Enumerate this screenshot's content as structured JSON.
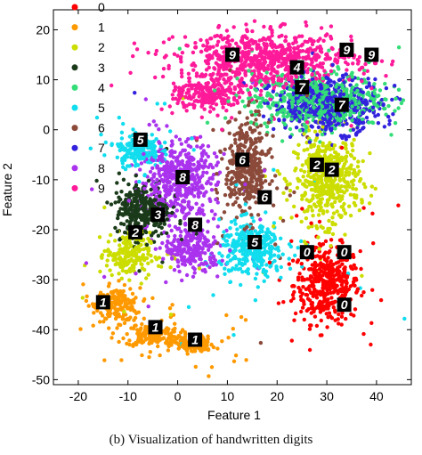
{
  "caption": "(b) Visualization of handwritten digits",
  "colors": [
    "#ff0000",
    "#ff9900",
    "#ccdd00",
    "#1a3a1a",
    "#33dd77",
    "#11ddee",
    "#8b4a3a",
    "#3322dd",
    "#aa33ee",
    "#ff1a9a"
  ],
  "chart_data": {
    "type": "scatter",
    "xlabel": "Feature 1",
    "ylabel": "Feature 2",
    "xlim": [
      -25,
      47
    ],
    "ylim": [
      -51,
      24
    ],
    "xticks": [
      "-20",
      "-10",
      "0",
      "10",
      "20",
      "30",
      "40"
    ],
    "yticks": [
      "20",
      "10",
      "0",
      "-10",
      "-20",
      "-30",
      "-40",
      "-50"
    ],
    "xtick_values": [
      -20,
      -10,
      0,
      10,
      20,
      30,
      40
    ],
    "ytick_values": [
      20,
      10,
      0,
      -10,
      -20,
      -30,
      -40,
      -50
    ],
    "grid": false,
    "legend_position": "top-left",
    "series": [
      {
        "name": "0",
        "color": "#ff0000",
        "clusters": [
          {
            "cx": 30,
            "cy": -31,
            "rx": 6,
            "ry": 7
          }
        ]
      },
      {
        "name": "1",
        "color": "#ff9900",
        "clusters": [
          {
            "cx": -12,
            "cy": -35,
            "rx": 4,
            "ry": 3
          },
          {
            "cx": -5,
            "cy": -41,
            "rx": 5,
            "ry": 2.2
          },
          {
            "cx": 3,
            "cy": -43,
            "rx": 4,
            "ry": 1.5
          }
        ]
      },
      {
        "name": "2",
        "color": "#ccdd00",
        "clusters": [
          {
            "cx": 30,
            "cy": -10,
            "rx": 6,
            "ry": 8
          },
          {
            "cx": -10,
            "cy": -25,
            "rx": 4,
            "ry": 4
          }
        ]
      },
      {
        "name": "3",
        "color": "#1a3a1a",
        "clusters": [
          {
            "cx": -7,
            "cy": -16,
            "rx": 5,
            "ry": 5
          }
        ]
      },
      {
        "name": "4",
        "color": "#33dd77",
        "clusters": [
          {
            "cx": 28,
            "cy": 6,
            "rx": 12,
            "ry": 5
          }
        ]
      },
      {
        "name": "5",
        "color": "#11ddee",
        "clusters": [
          {
            "cx": -8,
            "cy": -4,
            "rx": 4,
            "ry": 3
          },
          {
            "cx": 15,
            "cy": -24,
            "rx": 6,
            "ry": 5
          }
        ]
      },
      {
        "name": "6",
        "color": "#8b4a3a",
        "clusters": [
          {
            "cx": 14,
            "cy": -8,
            "rx": 4,
            "ry": 9
          }
        ]
      },
      {
        "name": "7",
        "color": "#3322dd",
        "clusters": [
          {
            "cx": 30,
            "cy": 5,
            "rx": 10,
            "ry": 5
          }
        ]
      },
      {
        "name": "8",
        "color": "#aa33ee",
        "clusters": [
          {
            "cx": 0,
            "cy": -10,
            "rx": 7,
            "ry": 7
          },
          {
            "cx": 3,
            "cy": -24,
            "rx": 5,
            "ry": 4
          }
        ]
      },
      {
        "name": "9",
        "color": "#ff1a9a",
        "clusters": [
          {
            "cx": 18,
            "cy": 14,
            "rx": 16,
            "ry": 5
          },
          {
            "cx": 6,
            "cy": 7,
            "rx": 6,
            "ry": 3
          }
        ]
      }
    ],
    "digit_markers": [
      {
        "label": "9",
        "x": 11,
        "y": 15
      },
      {
        "label": "9",
        "x": 34,
        "y": 16
      },
      {
        "label": "9",
        "x": 39,
        "y": 15
      },
      {
        "label": "4",
        "x": 24,
        "y": 12.5
      },
      {
        "label": "7",
        "x": 25,
        "y": 8.5
      },
      {
        "label": "7",
        "x": 33,
        "y": 5
      },
      {
        "label": "5",
        "x": -7.5,
        "y": -2
      },
      {
        "label": "6",
        "x": 13,
        "y": -6
      },
      {
        "label": "2",
        "x": 28,
        "y": -7
      },
      {
        "label": "2",
        "x": 31,
        "y": -8
      },
      {
        "label": "8",
        "x": 1,
        "y": -9.5
      },
      {
        "label": "6",
        "x": 17.5,
        "y": -13.5
      },
      {
        "label": "3",
        "x": -4,
        "y": -17
      },
      {
        "label": "2",
        "x": -8.5,
        "y": -20.5
      },
      {
        "label": "8",
        "x": 3.5,
        "y": -19
      },
      {
        "label": "5",
        "x": 15.5,
        "y": -22.5
      },
      {
        "label": "0",
        "x": 26,
        "y": -24.5
      },
      {
        "label": "0",
        "x": 33.5,
        "y": -24.5
      },
      {
        "label": "0",
        "x": 33.5,
        "y": -35
      },
      {
        "label": "1",
        "x": -15,
        "y": -34.5
      },
      {
        "label": "1",
        "x": -4.5,
        "y": -39.5
      },
      {
        "label": "1",
        "x": 3.5,
        "y": -42
      }
    ]
  }
}
